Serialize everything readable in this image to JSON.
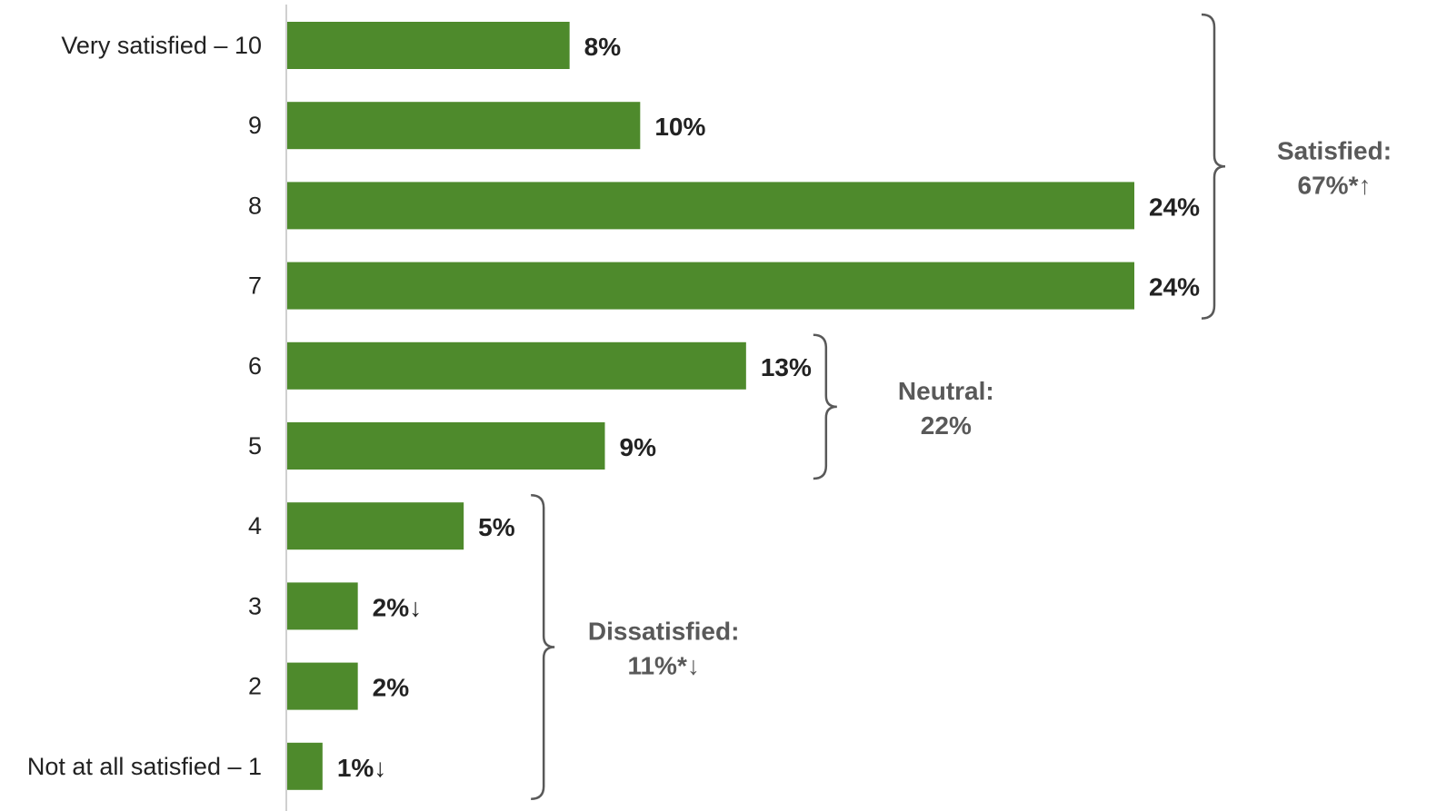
{
  "colors": {
    "bar": "#4e8a2c",
    "axis": "#d0d0d0",
    "bracket": "#595959",
    "text": "#222222",
    "group_text": "#595959"
  },
  "chart_data": {
    "type": "bar",
    "orientation": "horizontal",
    "categories": [
      "Very satisfied – 10",
      "9",
      "8",
      "7",
      "6",
      "5",
      "4",
      "3",
      "2",
      "Not at all satisfied – 1"
    ],
    "values": [
      8,
      10,
      24,
      24,
      13,
      9,
      5,
      2,
      2,
      1
    ],
    "data_labels": [
      "8%",
      "10%",
      "24%",
      "24%",
      "13%",
      "9%",
      "5%",
      "2%↓",
      "2%",
      "1%↓"
    ],
    "xlim": [
      0,
      24
    ],
    "grid": false,
    "groups": [
      {
        "line1": "Satisfied:",
        "line2": "67%*↑",
        "from": 0,
        "to": 3
      },
      {
        "line1": "Neutral:",
        "line2": "22%",
        "from": 4,
        "to": 5
      },
      {
        "line1": "Dissatisfied:",
        "line2": "11%*↓",
        "from": 6,
        "to": 9
      }
    ]
  }
}
